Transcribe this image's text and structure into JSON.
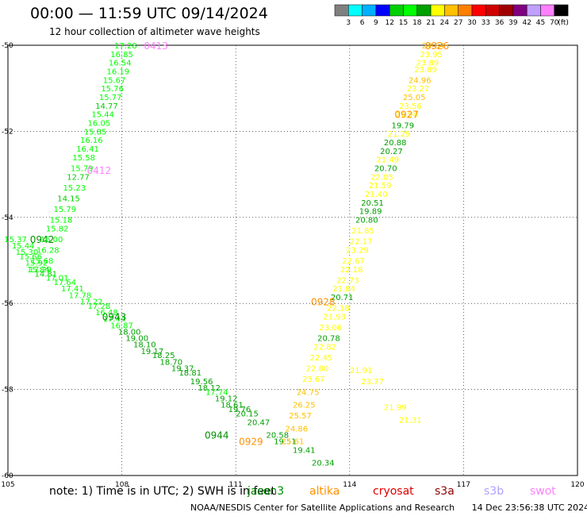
{
  "header": {
    "title": "00:00 — 11:59 UTC 09/14/2024",
    "subtitle": "12 hour collection of altimeter wave heights"
  },
  "colorbar": {
    "unit": "(ft)",
    "colors": [
      "#808080",
      "#00ffff",
      "#00b0ff",
      "#0000ff",
      "#00d000",
      "#00ff00",
      "#00a000",
      "#ffff00",
      "#ffc000",
      "#ff8000",
      "#ff0000",
      "#d00000",
      "#a00000",
      "#800080",
      "#c0a0ff",
      "#ff80ff",
      "#000000"
    ],
    "labels": [
      "3",
      "6",
      "9",
      "12",
      "15",
      "18",
      "21",
      "24",
      "27",
      "30",
      "33",
      "36",
      "39",
      "42",
      "45",
      "70"
    ]
  },
  "footer": {
    "note": "note:  1) Time is in UTC; 2) SWH is in feet",
    "credit": "NOAA/NESDIS Center for Satellite Applications and Research",
    "timestamp": "14 Dec 23:56:38 UTC 2024",
    "satellites": [
      {
        "name": "jason3",
        "color": "#009000"
      },
      {
        "name": "altika",
        "color": "#ff9000"
      },
      {
        "name": "cryosat",
        "color": "#e00000"
      },
      {
        "name": "s3a",
        "color": "#900000"
      },
      {
        "name": "s3b",
        "color": "#b0a0ff"
      },
      {
        "name": "swot",
        "color": "#ff80ff"
      }
    ]
  },
  "chart_data": {
    "type": "scatter",
    "title": "00:00 — 11:59 UTC 09/14/2024",
    "xlim": [
      105,
      120
    ],
    "ylim": [
      -60,
      -50
    ],
    "x_ticks": [
      "105",
      "108",
      "111",
      "114",
      "117",
      "120"
    ],
    "y_ticks": [
      "-50",
      "-52",
      "-54",
      "-56",
      "-58",
      "-60"
    ],
    "grid": true,
    "series": [
      {
        "name": "jason3",
        "color": "#009000",
        "time_labels": [
          {
            "x": 105.9,
            "y": -54.5,
            "text": "0942"
          },
          {
            "x": 107.8,
            "y": -56.3,
            "text": "0943"
          },
          {
            "x": 110.5,
            "y": -59.05,
            "text": "0944"
          }
        ],
        "points": [
          {
            "x": 105.2,
            "y": -54.5,
            "v": "15.37"
          },
          {
            "x": 105.4,
            "y": -54.65,
            "v": "15.44"
          },
          {
            "x": 105.5,
            "y": -54.8,
            "v": "15.30"
          },
          {
            "x": 105.6,
            "y": -54.9,
            "v": "15.66"
          },
          {
            "x": 105.75,
            "y": -55.05,
            "v": "15.92"
          },
          {
            "x": 105.85,
            "y": -55.2,
            "v": "17.29"
          },
          {
            "x": 106.0,
            "y": -55.3,
            "v": "14.81"
          },
          {
            "x": 106.3,
            "y": -55.4,
            "v": "17.01"
          },
          {
            "x": 106.5,
            "y": -55.5,
            "v": "17.64"
          },
          {
            "x": 106.7,
            "y": -55.65,
            "v": "17.41"
          },
          {
            "x": 106.9,
            "y": -55.8,
            "v": "17.78"
          },
          {
            "x": 107.2,
            "y": -55.95,
            "v": "17.22"
          },
          {
            "x": 107.4,
            "y": -56.05,
            "v": "17.28"
          },
          {
            "x": 107.6,
            "y": -56.2,
            "v": "16.48"
          },
          {
            "x": 107.8,
            "y": -56.35,
            "v": "17.44"
          },
          {
            "x": 108.0,
            "y": -56.5,
            "v": "16.87"
          },
          {
            "x": 108.2,
            "y": -56.65,
            "v": "18.00"
          },
          {
            "x": 108.4,
            "y": -56.8,
            "v": "19.00"
          },
          {
            "x": 108.6,
            "y": -56.95,
            "v": "18.10"
          },
          {
            "x": 108.8,
            "y": -57.1,
            "v": "19.17"
          },
          {
            "x": 109.1,
            "y": -57.2,
            "v": "18.25"
          },
          {
            "x": 109.3,
            "y": -57.35,
            "v": "18.70"
          },
          {
            "x": 109.6,
            "y": -57.5,
            "v": "19.37"
          },
          {
            "x": 109.8,
            "y": -57.6,
            "v": "18.81"
          },
          {
            "x": 110.1,
            "y": -57.8,
            "v": "19.56"
          },
          {
            "x": 110.3,
            "y": -57.95,
            "v": "18.12"
          },
          {
            "x": 110.5,
            "y": -58.05,
            "v": "17.74"
          },
          {
            "x": 110.75,
            "y": -58.2,
            "v": "19.12"
          },
          {
            "x": 110.9,
            "y": -58.35,
            "v": "18.61"
          },
          {
            "x": 111.1,
            "y": -58.45,
            "v": "19.76"
          },
          {
            "x": 111.3,
            "y": -58.55,
            "v": "20.15"
          },
          {
            "x": 111.6,
            "y": -58.75,
            "v": "20.47"
          },
          {
            "x": 112.1,
            "y": -59.05,
            "v": "20.58"
          },
          {
            "x": 112.3,
            "y": -59.2,
            "v": "19.51"
          },
          {
            "x": 112.8,
            "y": -59.4,
            "v": "19.41"
          },
          {
            "x": 113.3,
            "y": -59.7,
            "v": "20.34"
          }
        ]
      },
      {
        "name": "altika",
        "color": "#ff9000",
        "time_labels": [
          {
            "x": 116.3,
            "y": -50.0,
            "text": "0926"
          },
          {
            "x": 115.5,
            "y": -51.6,
            "text": "0927"
          },
          {
            "x": 113.3,
            "y": -55.95,
            "text": "0928"
          },
          {
            "x": 111.4,
            "y": -59.2,
            "text": "0929"
          }
        ],
        "points": [
          {
            "x": 116.2,
            "y": -50.0,
            "v": "24.54"
          },
          {
            "x": 116.15,
            "y": -50.2,
            "v": "23.95"
          },
          {
            "x": 116.05,
            "y": -50.4,
            "v": "23.89"
          },
          {
            "x": 116.0,
            "y": -50.55,
            "v": "23.89"
          },
          {
            "x": 115.85,
            "y": -50.8,
            "v": "24.96"
          },
          {
            "x": 115.8,
            "y": -51.0,
            "v": "23.27"
          },
          {
            "x": 115.7,
            "y": -51.2,
            "v": "25.05"
          },
          {
            "x": 115.6,
            "y": -51.4,
            "v": "23.56"
          },
          {
            "x": 115.5,
            "y": -51.6,
            "v": "21.94"
          },
          {
            "x": 115.4,
            "y": -51.85,
            "v": "19.79"
          },
          {
            "x": 115.3,
            "y": -52.05,
            "v": "21.29"
          },
          {
            "x": 115.2,
            "y": -52.25,
            "v": "20.88"
          },
          {
            "x": 115.1,
            "y": -52.45,
            "v": "20.27"
          },
          {
            "x": 115.0,
            "y": -52.65,
            "v": "21.49"
          },
          {
            "x": 114.95,
            "y": -52.85,
            "v": "20.70"
          },
          {
            "x": 114.85,
            "y": -53.05,
            "v": "22.05"
          },
          {
            "x": 114.8,
            "y": -53.25,
            "v": "21.59"
          },
          {
            "x": 114.7,
            "y": -53.45,
            "v": "21.40"
          },
          {
            "x": 114.6,
            "y": -53.65,
            "v": "20.51"
          },
          {
            "x": 114.55,
            "y": -53.85,
            "v": "19.89"
          },
          {
            "x": 114.45,
            "y": -54.05,
            "v": "20.80"
          },
          {
            "x": 114.35,
            "y": -54.3,
            "v": "21.85"
          },
          {
            "x": 114.3,
            "y": -54.55,
            "v": "22.17"
          },
          {
            "x": 114.2,
            "y": -54.75,
            "v": "23.29"
          },
          {
            "x": 114.1,
            "y": -55.0,
            "v": "22.67"
          },
          {
            "x": 114.05,
            "y": -55.2,
            "v": "22.18"
          },
          {
            "x": 113.95,
            "y": -55.45,
            "v": "22.73"
          },
          {
            "x": 113.85,
            "y": -55.65,
            "v": "21.84"
          },
          {
            "x": 113.8,
            "y": -55.85,
            "v": "20.71"
          },
          {
            "x": 113.7,
            "y": -56.1,
            "v": "22.18"
          },
          {
            "x": 113.6,
            "y": -56.3,
            "v": "21.93"
          },
          {
            "x": 113.5,
            "y": -56.55,
            "v": "23.06"
          },
          {
            "x": 113.45,
            "y": -56.8,
            "v": "20.78"
          },
          {
            "x": 113.35,
            "y": -57.0,
            "v": "22.82"
          },
          {
            "x": 113.25,
            "y": -57.25,
            "v": "22.45"
          },
          {
            "x": 113.15,
            "y": -57.5,
            "v": "22.80"
          },
          {
            "x": 113.05,
            "y": -57.75,
            "v": "23.67"
          },
          {
            "x": 112.9,
            "y": -58.05,
            "v": "24.75"
          },
          {
            "x": 112.8,
            "y": -58.35,
            "v": "26.25"
          },
          {
            "x": 112.7,
            "y": -58.6,
            "v": "25.57"
          },
          {
            "x": 112.6,
            "y": -58.9,
            "v": "24.86"
          },
          {
            "x": 112.5,
            "y": -59.2,
            "v": "25.61"
          },
          {
            "x": 114.3,
            "y": -57.55,
            "v": "21.91"
          },
          {
            "x": 114.6,
            "y": -57.8,
            "v": "23.77"
          },
          {
            "x": 115.2,
            "y": -58.4,
            "v": "21.99"
          },
          {
            "x": 115.6,
            "y": -58.7,
            "v": "21.31"
          }
        ]
      },
      {
        "name": "swot",
        "color": "#ff80ff",
        "time_labels": [
          {
            "x": 108.9,
            "y": -50.0,
            "text": "0413"
          },
          {
            "x": 107.4,
            "y": -52.9,
            "text": "0412"
          }
        ],
        "points": [
          {
            "x": 108.1,
            "y": -50.0,
            "v": "17.28"
          },
          {
            "x": 108.0,
            "y": -50.2,
            "v": "16.85"
          },
          {
            "x": 107.95,
            "y": -50.4,
            "v": "16.54"
          },
          {
            "x": 107.9,
            "y": -50.6,
            "v": "16.19"
          },
          {
            "x": 107.8,
            "y": -50.8,
            "v": "15.67"
          },
          {
            "x": 107.75,
            "y": -51.0,
            "v": "15.76"
          },
          {
            "x": 107.7,
            "y": -51.2,
            "v": "15.77"
          },
          {
            "x": 107.6,
            "y": -51.4,
            "v": "14.77"
          },
          {
            "x": 107.5,
            "y": -51.6,
            "v": "15.44"
          },
          {
            "x": 107.4,
            "y": -51.8,
            "v": "16.05"
          },
          {
            "x": 107.3,
            "y": -52.0,
            "v": "15.85"
          },
          {
            "x": 107.2,
            "y": -52.2,
            "v": "16.16"
          },
          {
            "x": 107.1,
            "y": -52.4,
            "v": "16.41"
          },
          {
            "x": 107.0,
            "y": -52.6,
            "v": "15.58"
          },
          {
            "x": 106.95,
            "y": -52.85,
            "v": "15.79"
          },
          {
            "x": 106.85,
            "y": -53.05,
            "v": "12.77"
          },
          {
            "x": 106.75,
            "y": -53.3,
            "v": "15.23"
          },
          {
            "x": 106.6,
            "y": -53.55,
            "v": "14.15"
          },
          {
            "x": 106.5,
            "y": -53.8,
            "v": "15.79"
          },
          {
            "x": 106.4,
            "y": -54.05,
            "v": "15.18"
          },
          {
            "x": 106.3,
            "y": -54.25,
            "v": "15.82"
          },
          {
            "x": 106.15,
            "y": -54.5,
            "v": "16.00"
          },
          {
            "x": 106.05,
            "y": -54.75,
            "v": "16.28"
          },
          {
            "x": 105.9,
            "y": -55.0,
            "v": "15.68"
          },
          {
            "x": 105.8,
            "y": -55.2,
            "v": "15.84"
          }
        ]
      }
    ]
  }
}
